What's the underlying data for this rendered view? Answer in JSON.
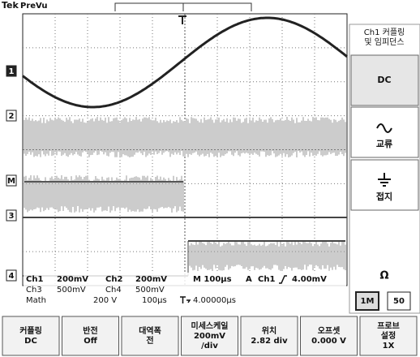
{
  "header": {
    "brand": "Tek",
    "mode": "PreVu"
  },
  "channel_markers": [
    "1",
    "2",
    "M",
    "3",
    "4"
  ],
  "readout": {
    "row1": [
      "Ch1",
      "200mV",
      "Ch2",
      "200mV",
      "M 100µs",
      "A",
      "Ch1",
      "4.00mV"
    ],
    "row2": [
      "Ch3",
      "500mV",
      "Ch4",
      "500mV"
    ],
    "row3": [
      "Math",
      "200 V",
      "100µs",
      "4.00000µs"
    ]
  },
  "side_menu": {
    "title": [
      "Ch1 커플링",
      "및 임피던스"
    ],
    "buttons": [
      "DC",
      "교류",
      "접지"
    ],
    "impedance": {
      "symbol": "Ω",
      "options": [
        "1M",
        "50"
      ]
    }
  },
  "bottom_menu": [
    [
      "커플링",
      "DC"
    ],
    [
      "반전",
      "Off"
    ],
    [
      "대역폭",
      "전"
    ],
    [
      "미세스케일",
      "200mV",
      "/div"
    ],
    [
      "위치",
      "2.82 div"
    ],
    [
      "오프셋",
      "0.000 V"
    ],
    [
      "프로브",
      "설정",
      "1X"
    ]
  ]
}
